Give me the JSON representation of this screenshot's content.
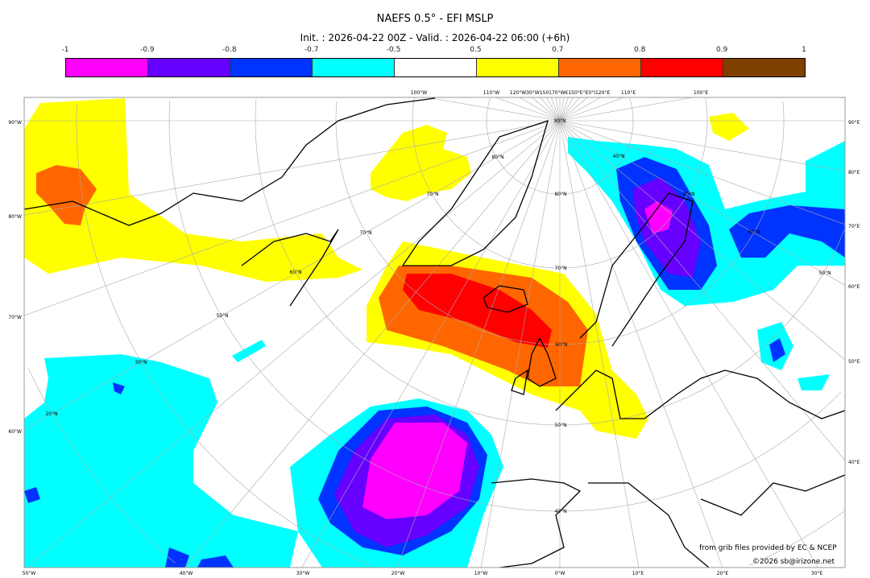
{
  "title": "NAEFS 0.5° - EFI MSLP",
  "subtitle": "Init. : 2026-04-22 00Z - Valid. : 2026-04-22 06:00 (+6h)",
  "colorbar": {
    "ticks": [
      "-1",
      "-0.9",
      "-0.8",
      "-0.7",
      "-0.5",
      "0.5",
      "0.7",
      "0.8",
      "0.9",
      "1"
    ],
    "colors": [
      "#ff00ff",
      "#6600ff",
      "#0033ff",
      "#00ffff",
      "#ffffff",
      "#ffff00",
      "#ff6600",
      "#ff0000",
      "#7f3f00"
    ]
  },
  "map": {
    "left_labels": [
      "90°W",
      "80°W",
      "70°W",
      "60°W"
    ],
    "right_labels": [
      "90°E",
      "80°E",
      "70°E",
      "60°E",
      "50°E",
      "40°E"
    ],
    "bottom_labels": [
      "50°W",
      "40°W",
      "30°W",
      "20°W",
      "10°W",
      "0°W",
      "10°E",
      "20°E",
      "30°E"
    ],
    "top_labels": [
      "100°W",
      "110°W",
      "120°W30°W150170°W€150°E°E0°I120°E",
      "110°E",
      "100°E"
    ],
    "lat_labels": [
      "90°N",
      "80°N",
      "70°N",
      "60°N",
      "50°N",
      "40°N",
      "30°N",
      "20°N",
      "80°N",
      "70°N",
      "60°N",
      "50°N",
      "40°N",
      "70°N",
      "80°N",
      "60°N",
      "50°N"
    ]
  },
  "credits": {
    "source": "from grib files provided by EC & NCEP",
    "copyright": "©2026 sb@irizone.net"
  }
}
